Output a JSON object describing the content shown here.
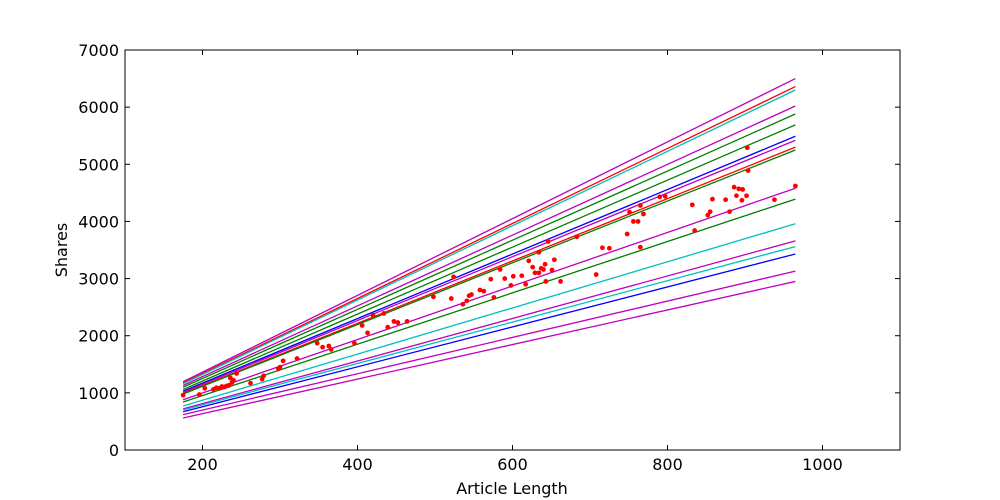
{
  "chart_data": {
    "type": "scatter",
    "xlabel": "Article Length",
    "ylabel": "Shares",
    "xlim": [
      100,
      1100
    ],
    "ylim": [
      0,
      7000
    ],
    "x_ticks": [
      200,
      400,
      600,
      800,
      1000
    ],
    "y_ticks": [
      0,
      1000,
      2000,
      3000,
      4000,
      5000,
      6000,
      7000
    ],
    "grid": false,
    "legend": "none",
    "scatter": {
      "color": "#ff0000",
      "points": [
        [
          175,
          960
        ],
        [
          196,
          970
        ],
        [
          203,
          1080
        ],
        [
          214,
          1060
        ],
        [
          218,
          1090
        ],
        [
          222,
          1080
        ],
        [
          225,
          1110
        ],
        [
          228,
          1100
        ],
        [
          231,
          1120
        ],
        [
          234,
          1130
        ],
        [
          236,
          1260
        ],
        [
          238,
          1180
        ],
        [
          240,
          1220
        ],
        [
          244,
          1340
        ],
        [
          262,
          1170
        ],
        [
          277,
          1240
        ],
        [
          279,
          1300
        ],
        [
          298,
          1420
        ],
        [
          300,
          1450
        ],
        [
          304,
          1560
        ],
        [
          322,
          1600
        ],
        [
          348,
          1870
        ],
        [
          355,
          1800
        ],
        [
          363,
          1820
        ],
        [
          366,
          1760
        ],
        [
          396,
          1870
        ],
        [
          406,
          2180
        ],
        [
          413,
          2050
        ],
        [
          420,
          2360
        ],
        [
          434,
          2390
        ],
        [
          439,
          2150
        ],
        [
          447,
          2250
        ],
        [
          452,
          2230
        ],
        [
          464,
          2250
        ],
        [
          498,
          2680
        ],
        [
          521,
          2650
        ],
        [
          524,
          3030
        ],
        [
          536,
          2550
        ],
        [
          541,
          2610
        ],
        [
          544,
          2700
        ],
        [
          547,
          2720
        ],
        [
          558,
          2800
        ],
        [
          563,
          2780
        ],
        [
          572,
          2990
        ],
        [
          576,
          2670
        ],
        [
          584,
          3160
        ],
        [
          590,
          3000
        ],
        [
          598,
          2880
        ],
        [
          601,
          3040
        ],
        [
          612,
          3050
        ],
        [
          617,
          2900
        ],
        [
          621,
          3310
        ],
        [
          626,
          3200
        ],
        [
          629,
          3100
        ],
        [
          634,
          3460
        ],
        [
          634,
          3100
        ],
        [
          637,
          3180
        ],
        [
          640,
          3160
        ],
        [
          642,
          3250
        ],
        [
          643,
          2950
        ],
        [
          646,
          3650
        ],
        [
          651,
          3150
        ],
        [
          654,
          3330
        ],
        [
          662,
          2950
        ],
        [
          683,
          3730
        ],
        [
          708,
          3070
        ],
        [
          716,
          3540
        ],
        [
          725,
          3530
        ],
        [
          748,
          3780
        ],
        [
          751,
          4160
        ],
        [
          756,
          4000
        ],
        [
          762,
          4000
        ],
        [
          765,
          3550
        ],
        [
          765,
          4280
        ],
        [
          769,
          4130
        ],
        [
          790,
          4430
        ],
        [
          797,
          4440
        ],
        [
          832,
          4290
        ],
        [
          835,
          3840
        ],
        [
          852,
          4110
        ],
        [
          855,
          4170
        ],
        [
          858,
          4390
        ],
        [
          875,
          4380
        ],
        [
          880,
          4170
        ],
        [
          886,
          4600
        ],
        [
          889,
          4450
        ],
        [
          892,
          4570
        ],
        [
          896,
          4370
        ],
        [
          897,
          4560
        ],
        [
          902,
          4450
        ],
        [
          903,
          5290
        ],
        [
          904,
          4890
        ],
        [
          938,
          4380
        ],
        [
          965,
          4620
        ]
      ]
    },
    "lines": [
      {
        "color": "#bf00bf",
        "x": [
          175,
          965
        ],
        "y": [
          1195,
          6500
        ]
      },
      {
        "color": "#ff0000",
        "x": [
          175,
          965
        ],
        "y": [
          1175,
          6360
        ]
      },
      {
        "color": "#00bfbf",
        "x": [
          175,
          965
        ],
        "y": [
          1160,
          6300
        ]
      },
      {
        "color": "#bf00bf",
        "x": [
          175,
          965
        ],
        "y": [
          1130,
          6020
        ]
      },
      {
        "color": "#008000",
        "x": [
          175,
          965
        ],
        "y": [
          1100,
          5880
        ]
      },
      {
        "color": "#008000",
        "x": [
          175,
          965
        ],
        "y": [
          1060,
          5690
        ]
      },
      {
        "color": "#0000ff",
        "x": [
          175,
          965
        ],
        "y": [
          1030,
          5490
        ]
      },
      {
        "color": "#bf00bf",
        "x": [
          175,
          965
        ],
        "y": [
          1010,
          5420
        ]
      },
      {
        "color": "#ff0000",
        "x": [
          175,
          965
        ],
        "y": [
          990,
          5300
        ]
      },
      {
        "color": "#008000",
        "x": [
          175,
          965
        ],
        "y": [
          980,
          5250
        ]
      },
      {
        "color": "#bf00bf",
        "x": [
          175,
          965
        ],
        "y": [
          880,
          4580
        ]
      },
      {
        "color": "#008000",
        "x": [
          175,
          965
        ],
        "y": [
          840,
          4390
        ]
      },
      {
        "color": "#00bfbf",
        "x": [
          175,
          965
        ],
        "y": [
          770,
          3960
        ]
      },
      {
        "color": "#bf00bf",
        "x": [
          175,
          965
        ],
        "y": [
          720,
          3660
        ]
      },
      {
        "color": "#00bfbf",
        "x": [
          175,
          965
        ],
        "y": [
          700,
          3560
        ]
      },
      {
        "color": "#0000ff",
        "x": [
          175,
          965
        ],
        "y": [
          670,
          3430
        ]
      },
      {
        "color": "#bf00bf",
        "x": [
          175,
          965
        ],
        "y": [
          620,
          3130
        ]
      },
      {
        "color": "#bf00bf",
        "x": [
          175,
          965
        ],
        "y": [
          560,
          2950
        ]
      }
    ]
  }
}
